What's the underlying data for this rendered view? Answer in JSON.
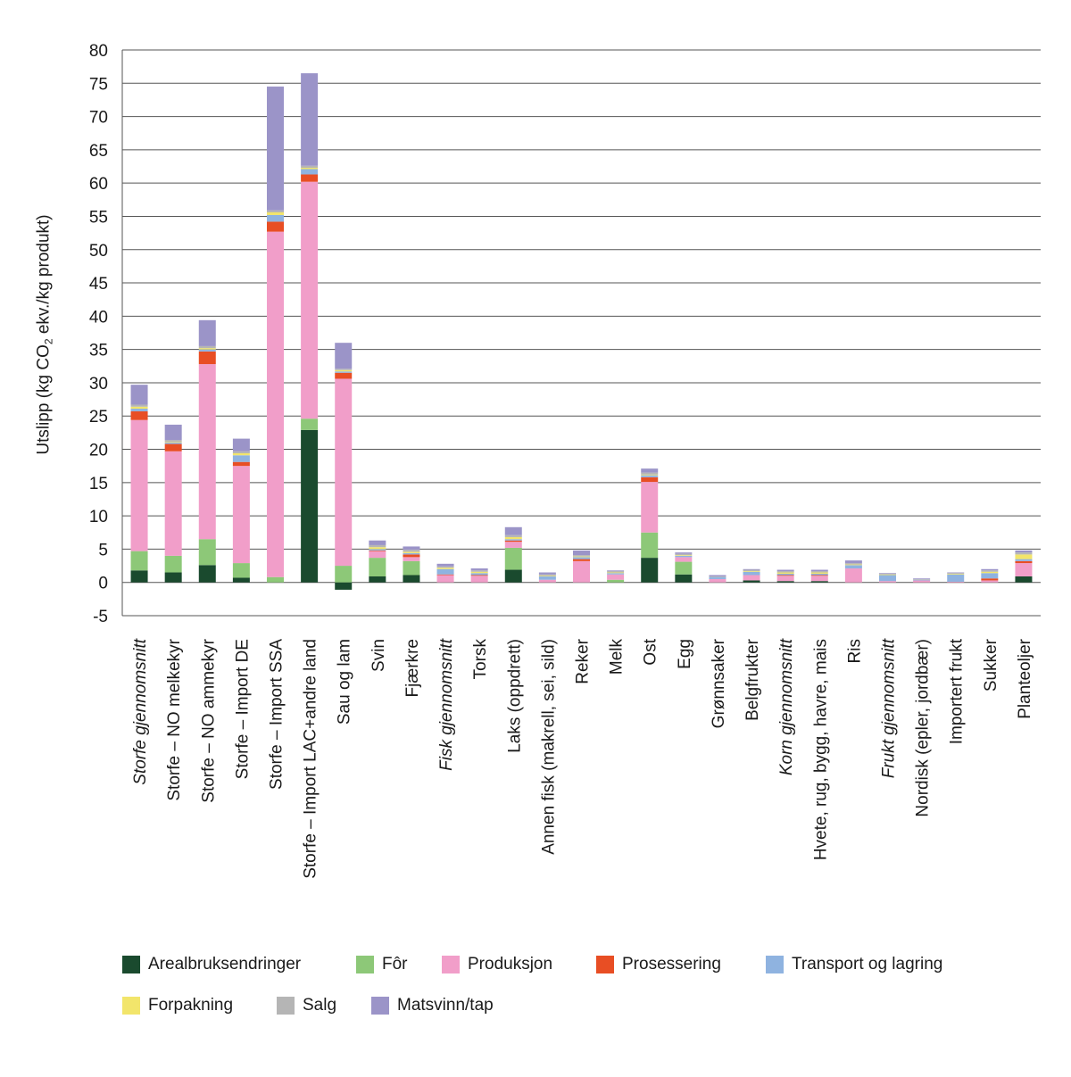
{
  "chart_data": {
    "type": "bar",
    "stacked": true,
    "ylabel_main": "Utslipp (kg CO",
    "ylabel_sub": "2",
    "ylabel_tail": " ekv./kg produkt)",
    "ylim": [
      -5,
      80
    ],
    "yticks": [
      -5,
      0,
      5,
      10,
      15,
      20,
      25,
      30,
      35,
      40,
      45,
      50,
      55,
      60,
      65,
      70,
      75,
      80
    ],
    "grid": true,
    "legend_position": "bottom",
    "categories": [
      "Storfe gjennomsnitt",
      "Storfe – NO melkekyr",
      "Storfe – NO ammekyr",
      "Storfe – Import DE",
      "Storfe – Import SSA",
      "Storfe – Import LAC+andre land",
      "Sau og lam",
      "Svin",
      "Fjærkre",
      "Fisk gjennomsnitt",
      "Torsk",
      "Laks (oppdrett)",
      "Annen fisk (makrell, sei, sild)",
      "Reker",
      "Melk",
      "Ost",
      "Egg",
      "Grønnsaker",
      "Belgfrukter",
      "Korn gjennomsnitt",
      "Hvete, rug, bygg, havre, mais",
      "Ris",
      "Frukt gjennomsnitt",
      "Nordisk (epler, jordbær)",
      "Importert frukt",
      "Sukker",
      "Planteoljer"
    ],
    "italic_categories": [
      0,
      9,
      19,
      22
    ],
    "series": [
      {
        "name": "Arealbruksendringer",
        "color": "#1a4a2e",
        "values": [
          1.8,
          1.5,
          2.6,
          0.7,
          0.0,
          22.9,
          -1.1,
          0.9,
          1.1,
          0.0,
          0.0,
          1.9,
          0.0,
          0.0,
          0.0,
          3.7,
          1.2,
          0.0,
          0.3,
          0.2,
          0.2,
          0.0,
          0.0,
          0.0,
          0.0,
          0.0,
          0.9
        ]
      },
      {
        "name": "Fôr",
        "color": "#8dc878",
        "values": [
          2.9,
          2.5,
          3.9,
          2.2,
          0.8,
          1.7,
          2.5,
          2.8,
          2.1,
          0.0,
          0.0,
          3.3,
          0.0,
          0.0,
          0.4,
          3.8,
          1.9,
          0.0,
          0.0,
          0.0,
          0.0,
          0.0,
          0.0,
          0.0,
          0.0,
          0.0,
          0.0
        ]
      },
      {
        "name": "Produksjon",
        "color": "#f19ec9",
        "values": [
          19.7,
          15.7,
          26.3,
          14.6,
          51.9,
          35.6,
          28.1,
          1.0,
          0.6,
          1.1,
          1.0,
          0.9,
          0.4,
          3.2,
          0.8,
          7.6,
          0.7,
          0.5,
          0.8,
          0.8,
          0.8,
          2.1,
          0.2,
          0.3,
          0.1,
          0.3,
          2.0
        ]
      },
      {
        "name": "Prosessering",
        "color": "#e84e24",
        "values": [
          1.3,
          1.1,
          1.9,
          0.6,
          1.5,
          1.1,
          0.9,
          0.1,
          0.4,
          0.1,
          0.1,
          0.2,
          0.0,
          0.3,
          0.0,
          0.7,
          0.0,
          0.0,
          0.0,
          0.1,
          0.1,
          0.0,
          0.0,
          0.0,
          0.0,
          0.3,
          0.3
        ]
      },
      {
        "name": "Transport og lagring",
        "color": "#8fb3e0",
        "values": [
          0.4,
          0.2,
          0.3,
          1.0,
          1.0,
          0.8,
          0.2,
          0.2,
          0.2,
          0.8,
          0.3,
          0.2,
          0.5,
          0.3,
          0.2,
          0.3,
          0.2,
          0.3,
          0.5,
          0.2,
          0.2,
          0.5,
          0.9,
          0.1,
          1.1,
          0.8,
          0.3
        ]
      },
      {
        "name": "Forpakning",
        "color": "#f2e56b",
        "values": [
          0.3,
          0.1,
          0.2,
          0.3,
          0.4,
          0.2,
          0.2,
          0.3,
          0.2,
          0.2,
          0.2,
          0.3,
          0.1,
          0.1,
          0.1,
          0.1,
          0.1,
          0.0,
          0.1,
          0.2,
          0.2,
          0.1,
          0.1,
          0.0,
          0.1,
          0.2,
          0.7
        ]
      },
      {
        "name": "Salg",
        "color": "#b5b5b5",
        "values": [
          0.3,
          0.3,
          0.3,
          0.3,
          0.3,
          0.3,
          0.2,
          0.3,
          0.3,
          0.2,
          0.2,
          0.3,
          0.2,
          0.2,
          0.2,
          0.3,
          0.2,
          0.1,
          0.2,
          0.2,
          0.2,
          0.2,
          0.1,
          0.1,
          0.1,
          0.2,
          0.3
        ]
      },
      {
        "name": "Matsvinn/tap",
        "color": "#9b94c8",
        "values": [
          3.0,
          2.3,
          3.9,
          1.9,
          18.6,
          13.9,
          3.9,
          0.7,
          0.5,
          0.4,
          0.3,
          1.2,
          0.3,
          0.7,
          0.1,
          0.6,
          0.2,
          0.2,
          0.1,
          0.2,
          0.2,
          0.4,
          0.1,
          0.1,
          0.1,
          0.2,
          0.3
        ]
      }
    ]
  }
}
